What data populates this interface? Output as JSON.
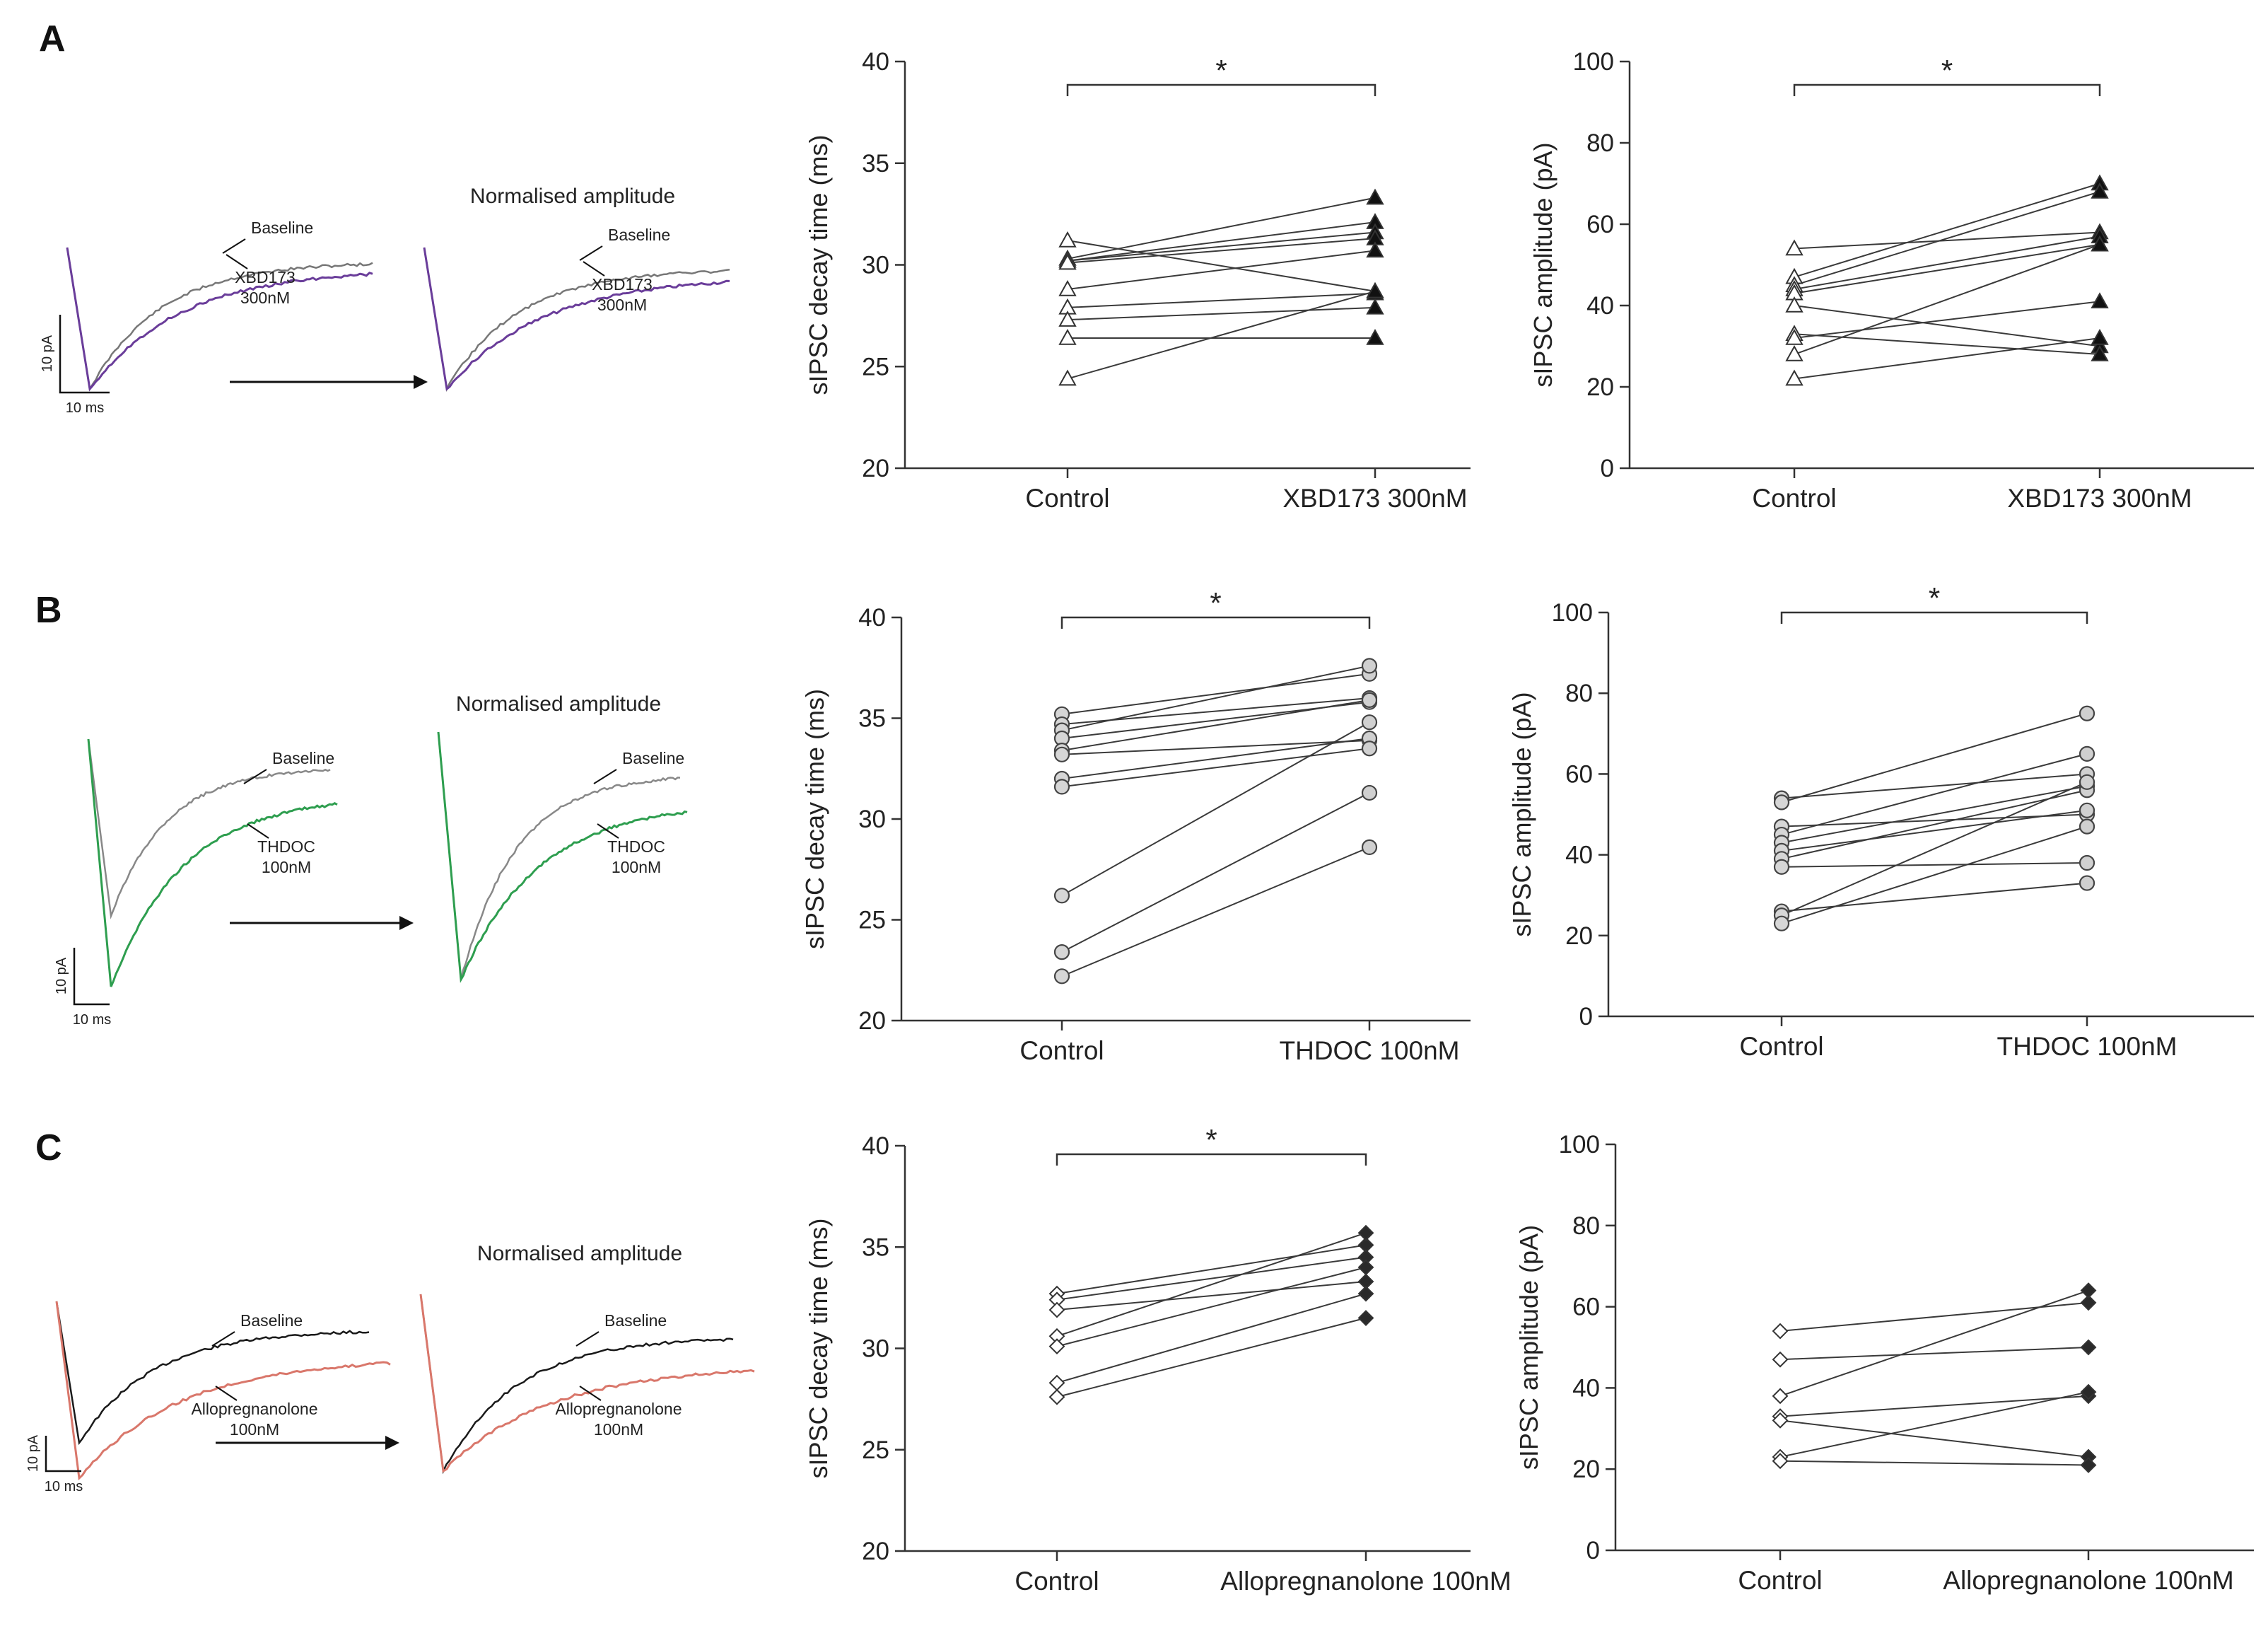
{
  "panels": [
    {
      "letter": "A",
      "traces": {
        "title": "Normalised amplitude",
        "baseline_label": "Baseline",
        "drug_label_line1": "XBD173",
        "drug_label_line2": "300nM",
        "drug_color": "#6a3d9a",
        "baseline_color": "#777777",
        "scale_y": "10 pA",
        "scale_x": "10 ms"
      }
    },
    {
      "letter": "B",
      "traces": {
        "title": "Normalised amplitude",
        "baseline_label": "Baseline",
        "drug_label_line1": "THDOC",
        "drug_label_line2": "100nM",
        "drug_color": "#2e9e4f",
        "baseline_color": "#888888",
        "scale_y": "10 pA",
        "scale_x": "10 ms"
      }
    },
    {
      "letter": "C",
      "traces": {
        "title": "Normalised amplitude",
        "baseline_label": "Baseline",
        "drug_label_line1": "Allopregnanolone",
        "drug_label_line2": "100nM",
        "drug_color": "#d9776b",
        "baseline_color": "#1a1a1a",
        "scale_y": "10 pA",
        "scale_x": "10 ms"
      }
    }
  ],
  "chart_data": [
    {
      "id": "A-decay",
      "type": "line",
      "marker": "triangle",
      "ylabel": "sIPSC decay time (ms)",
      "ylim": [
        20,
        40
      ],
      "yticks": [
        20,
        25,
        30,
        35,
        40
      ],
      "categories": [
        "Control",
        "XBD173 300nM"
      ],
      "significance": "*",
      "series": [
        {
          "name": "cell1",
          "values": [
            31.2,
            28.7
          ]
        },
        {
          "name": "cell2",
          "values": [
            30.3,
            33.3
          ]
        },
        {
          "name": "cell3",
          "values": [
            30.2,
            32.1
          ]
        },
        {
          "name": "cell4",
          "values": [
            30.2,
            31.6
          ]
        },
        {
          "name": "cell5",
          "values": [
            30.1,
            31.3
          ]
        },
        {
          "name": "cell6",
          "values": [
            28.8,
            30.7
          ]
        },
        {
          "name": "cell7",
          "values": [
            27.9,
            28.6
          ]
        },
        {
          "name": "cell8",
          "values": [
            27.3,
            27.9
          ]
        },
        {
          "name": "cell9",
          "values": [
            26.4,
            26.4
          ]
        },
        {
          "name": "cell10",
          "values": [
            24.4,
            28.7
          ]
        }
      ]
    },
    {
      "id": "A-amp",
      "type": "line",
      "marker": "triangle",
      "ylabel": "sIPSC amplitude (pA)",
      "ylim": [
        0,
        100
      ],
      "yticks": [
        0,
        20,
        40,
        60,
        80,
        100
      ],
      "categories": [
        "Control",
        "XBD173 300nM"
      ],
      "significance": "*",
      "series": [
        {
          "name": "cell1",
          "values": [
            54,
            58
          ]
        },
        {
          "name": "cell2",
          "values": [
            47,
            70
          ]
        },
        {
          "name": "cell3",
          "values": [
            45,
            68
          ]
        },
        {
          "name": "cell4",
          "values": [
            44,
            57
          ]
        },
        {
          "name": "cell5",
          "values": [
            43,
            55
          ]
        },
        {
          "name": "cell6",
          "values": [
            40,
            30
          ]
        },
        {
          "name": "cell7",
          "values": [
            33,
            28
          ]
        },
        {
          "name": "cell8",
          "values": [
            32,
            41
          ]
        },
        {
          "name": "cell9",
          "values": [
            28,
            55
          ]
        },
        {
          "name": "cell10",
          "values": [
            22,
            32
          ]
        }
      ]
    },
    {
      "id": "B-decay",
      "type": "line",
      "marker": "circle",
      "ylabel": "sIPSC decay time (ms)",
      "ylim": [
        20,
        40
      ],
      "yticks": [
        20,
        25,
        30,
        35,
        40
      ],
      "categories": [
        "Control",
        "THDOC 100nM"
      ],
      "significance": "*",
      "series": [
        {
          "name": "cell1",
          "values": [
            35.2,
            37.2
          ]
        },
        {
          "name": "cell2",
          "values": [
            34.7,
            36.0
          ]
        },
        {
          "name": "cell3",
          "values": [
            34.4,
            37.6
          ]
        },
        {
          "name": "cell4",
          "values": [
            34.0,
            35.8
          ]
        },
        {
          "name": "cell5",
          "values": [
            33.4,
            35.9
          ]
        },
        {
          "name": "cell6",
          "values": [
            33.2,
            33.9
          ]
        },
        {
          "name": "cell7",
          "values": [
            32.0,
            34.0
          ]
        },
        {
          "name": "cell8",
          "values": [
            31.6,
            33.5
          ]
        },
        {
          "name": "cell9",
          "values": [
            26.2,
            34.8
          ]
        },
        {
          "name": "cell10",
          "values": [
            23.4,
            31.3
          ]
        },
        {
          "name": "cell11",
          "values": [
            22.2,
            28.6
          ]
        }
      ]
    },
    {
      "id": "B-amp",
      "type": "line",
      "marker": "circle",
      "ylabel": "sIPSC amplitude (pA)",
      "ylim": [
        0,
        100
      ],
      "yticks": [
        0,
        20,
        40,
        60,
        80,
        100
      ],
      "categories": [
        "Control",
        "THDOC 100nM"
      ],
      "significance": "*",
      "series": [
        {
          "name": "cell1",
          "values": [
            54,
            60
          ]
        },
        {
          "name": "cell2",
          "values": [
            53,
            75
          ]
        },
        {
          "name": "cell3",
          "values": [
            47,
            50
          ]
        },
        {
          "name": "cell4",
          "values": [
            45,
            65
          ]
        },
        {
          "name": "cell5",
          "values": [
            43,
            57
          ]
        },
        {
          "name": "cell6",
          "values": [
            41,
            51
          ]
        },
        {
          "name": "cell7",
          "values": [
            39,
            56
          ]
        },
        {
          "name": "cell8",
          "values": [
            37,
            38
          ]
        },
        {
          "name": "cell9",
          "values": [
            26,
            33
          ]
        },
        {
          "name": "cell10",
          "values": [
            25,
            58
          ]
        },
        {
          "name": "cell11",
          "values": [
            23,
            47
          ]
        }
      ]
    },
    {
      "id": "C-decay",
      "type": "line",
      "marker": "diamond",
      "ylabel": "sIPSC decay time (ms)",
      "ylim": [
        20,
        40
      ],
      "yticks": [
        20,
        25,
        30,
        35,
        40
      ],
      "categories": [
        "Control",
        "Allopregnanolone 100nM"
      ],
      "significance": "*",
      "series": [
        {
          "name": "cell1",
          "values": [
            32.7,
            35.1
          ]
        },
        {
          "name": "cell2",
          "values": [
            32.4,
            34.5
          ]
        },
        {
          "name": "cell3",
          "values": [
            31.9,
            33.3
          ]
        },
        {
          "name": "cell4",
          "values": [
            30.6,
            35.7
          ]
        },
        {
          "name": "cell5",
          "values": [
            30.1,
            34.0
          ]
        },
        {
          "name": "cell6",
          "values": [
            28.3,
            32.7
          ]
        },
        {
          "name": "cell7",
          "values": [
            27.6,
            31.5
          ]
        }
      ]
    },
    {
      "id": "C-amp",
      "type": "line",
      "marker": "diamond",
      "ylabel": "sIPSC amplitude (pA)",
      "ylim": [
        0,
        100
      ],
      "yticks": [
        0,
        20,
        40,
        60,
        80,
        100
      ],
      "categories": [
        "Control",
        "Allopregnanolone 100nM"
      ],
      "significance": "",
      "series": [
        {
          "name": "cell1",
          "values": [
            54,
            61
          ]
        },
        {
          "name": "cell2",
          "values": [
            47,
            50
          ]
        },
        {
          "name": "cell3",
          "values": [
            38,
            64
          ]
        },
        {
          "name": "cell4",
          "values": [
            33,
            38
          ]
        },
        {
          "name": "cell5",
          "values": [
            32,
            23
          ]
        },
        {
          "name": "cell6",
          "values": [
            23,
            39
          ]
        },
        {
          "name": "cell7",
          "values": [
            22,
            21
          ]
        }
      ]
    }
  ]
}
